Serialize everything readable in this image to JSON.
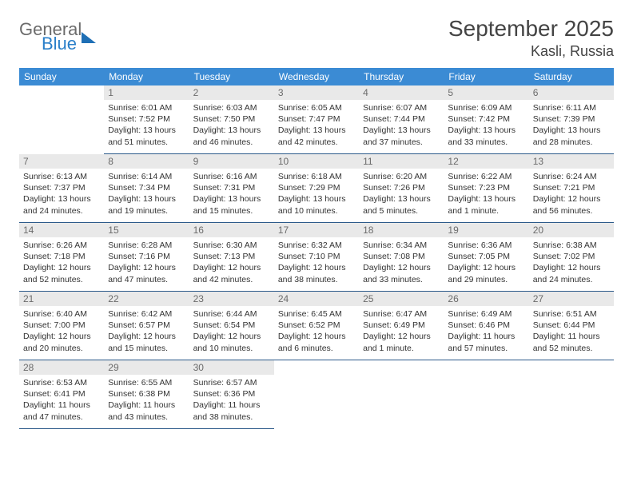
{
  "brand": {
    "part1": "General",
    "part2": "Blue"
  },
  "title": "September 2025",
  "location": "Kasli, Russia",
  "colors": {
    "header_bg": "#3b8bd4",
    "header_text": "#ffffff",
    "daynum_bg": "#e9e9e9",
    "daynum_text": "#6b6b6b",
    "rule": "#2c5a8a",
    "body_text": "#333333",
    "logo_gray": "#6b6b6b",
    "logo_blue": "#2a7fc9"
  },
  "weekdays": [
    "Sunday",
    "Monday",
    "Tuesday",
    "Wednesday",
    "Thursday",
    "Friday",
    "Saturday"
  ],
  "rows": [
    [
      null,
      {
        "n": "1",
        "sr": "6:01 AM",
        "ss": "7:52 PM",
        "dl": "13 hours and 51 minutes."
      },
      {
        "n": "2",
        "sr": "6:03 AM",
        "ss": "7:50 PM",
        "dl": "13 hours and 46 minutes."
      },
      {
        "n": "3",
        "sr": "6:05 AM",
        "ss": "7:47 PM",
        "dl": "13 hours and 42 minutes."
      },
      {
        "n": "4",
        "sr": "6:07 AM",
        "ss": "7:44 PM",
        "dl": "13 hours and 37 minutes."
      },
      {
        "n": "5",
        "sr": "6:09 AM",
        "ss": "7:42 PM",
        "dl": "13 hours and 33 minutes."
      },
      {
        "n": "6",
        "sr": "6:11 AM",
        "ss": "7:39 PM",
        "dl": "13 hours and 28 minutes."
      }
    ],
    [
      {
        "n": "7",
        "sr": "6:13 AM",
        "ss": "7:37 PM",
        "dl": "13 hours and 24 minutes."
      },
      {
        "n": "8",
        "sr": "6:14 AM",
        "ss": "7:34 PM",
        "dl": "13 hours and 19 minutes."
      },
      {
        "n": "9",
        "sr": "6:16 AM",
        "ss": "7:31 PM",
        "dl": "13 hours and 15 minutes."
      },
      {
        "n": "10",
        "sr": "6:18 AM",
        "ss": "7:29 PM",
        "dl": "13 hours and 10 minutes."
      },
      {
        "n": "11",
        "sr": "6:20 AM",
        "ss": "7:26 PM",
        "dl": "13 hours and 5 minutes."
      },
      {
        "n": "12",
        "sr": "6:22 AM",
        "ss": "7:23 PM",
        "dl": "13 hours and 1 minute."
      },
      {
        "n": "13",
        "sr": "6:24 AM",
        "ss": "7:21 PM",
        "dl": "12 hours and 56 minutes."
      }
    ],
    [
      {
        "n": "14",
        "sr": "6:26 AM",
        "ss": "7:18 PM",
        "dl": "12 hours and 52 minutes."
      },
      {
        "n": "15",
        "sr": "6:28 AM",
        "ss": "7:16 PM",
        "dl": "12 hours and 47 minutes."
      },
      {
        "n": "16",
        "sr": "6:30 AM",
        "ss": "7:13 PM",
        "dl": "12 hours and 42 minutes."
      },
      {
        "n": "17",
        "sr": "6:32 AM",
        "ss": "7:10 PM",
        "dl": "12 hours and 38 minutes."
      },
      {
        "n": "18",
        "sr": "6:34 AM",
        "ss": "7:08 PM",
        "dl": "12 hours and 33 minutes."
      },
      {
        "n": "19",
        "sr": "6:36 AM",
        "ss": "7:05 PM",
        "dl": "12 hours and 29 minutes."
      },
      {
        "n": "20",
        "sr": "6:38 AM",
        "ss": "7:02 PM",
        "dl": "12 hours and 24 minutes."
      }
    ],
    [
      {
        "n": "21",
        "sr": "6:40 AM",
        "ss": "7:00 PM",
        "dl": "12 hours and 20 minutes."
      },
      {
        "n": "22",
        "sr": "6:42 AM",
        "ss": "6:57 PM",
        "dl": "12 hours and 15 minutes."
      },
      {
        "n": "23",
        "sr": "6:44 AM",
        "ss": "6:54 PM",
        "dl": "12 hours and 10 minutes."
      },
      {
        "n": "24",
        "sr": "6:45 AM",
        "ss": "6:52 PM",
        "dl": "12 hours and 6 minutes."
      },
      {
        "n": "25",
        "sr": "6:47 AM",
        "ss": "6:49 PM",
        "dl": "12 hours and 1 minute."
      },
      {
        "n": "26",
        "sr": "6:49 AM",
        "ss": "6:46 PM",
        "dl": "11 hours and 57 minutes."
      },
      {
        "n": "27",
        "sr": "6:51 AM",
        "ss": "6:44 PM",
        "dl": "11 hours and 52 minutes."
      }
    ],
    [
      {
        "n": "28",
        "sr": "6:53 AM",
        "ss": "6:41 PM",
        "dl": "11 hours and 47 minutes."
      },
      {
        "n": "29",
        "sr": "6:55 AM",
        "ss": "6:38 PM",
        "dl": "11 hours and 43 minutes."
      },
      {
        "n": "30",
        "sr": "6:57 AM",
        "ss": "6:36 PM",
        "dl": "11 hours and 38 minutes."
      },
      null,
      null,
      null,
      null
    ]
  ],
  "labels": {
    "sunrise": "Sunrise: ",
    "sunset": "Sunset: ",
    "daylight": "Daylight: "
  }
}
